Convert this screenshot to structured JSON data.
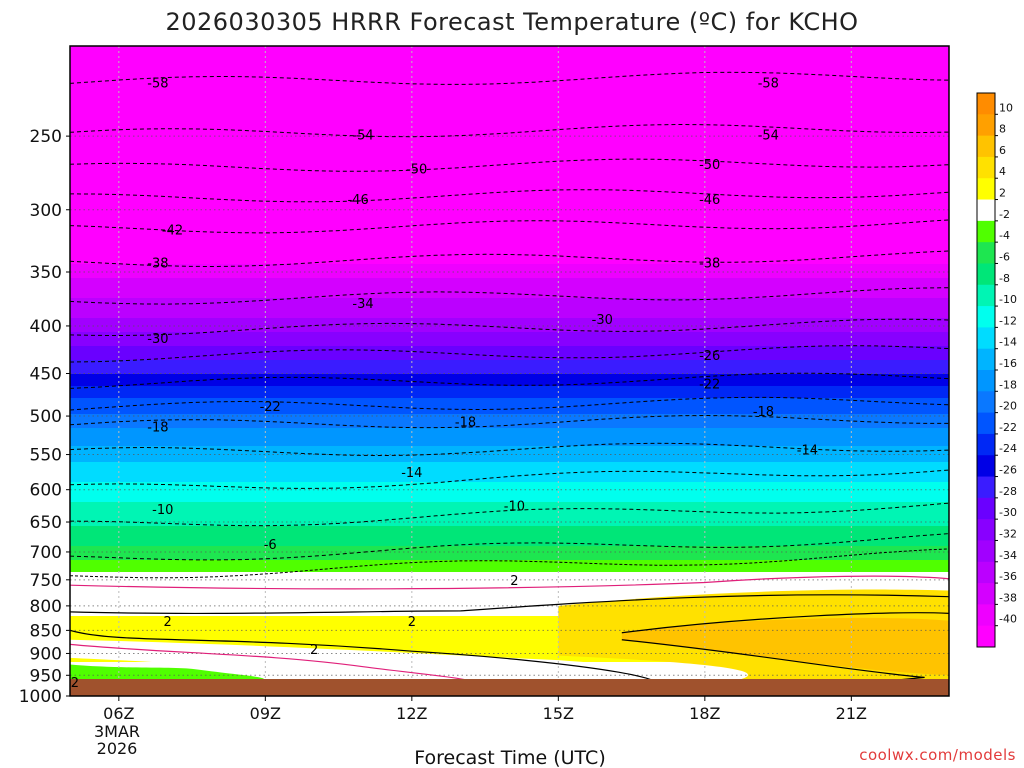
{
  "chart_data": {
    "type": "heatmap",
    "title": "2026030305 HRRR Forecast Temperature (ºC) for KCHO",
    "xlabel": "Forecast Time (UTC)",
    "ylabel": "",
    "credit": "coolwx.com/models",
    "x_ticks": [
      "06Z",
      "09Z",
      "12Z",
      "15Z",
      "18Z",
      "21Z"
    ],
    "x_hours": [
      6,
      9,
      12,
      15,
      18,
      21
    ],
    "x_sub": [
      "3MAR",
      "2026"
    ],
    "xlim_hours": [
      5,
      23
    ],
    "y_ticks": [
      250,
      300,
      350,
      400,
      450,
      500,
      550,
      600,
      650,
      700,
      750,
      800,
      850,
      900,
      950,
      1000
    ],
    "y_tick_labels": [
      "250",
      "300",
      "350",
      "400",
      "450",
      "500",
      "550",
      "600",
      "650",
      "700",
      "750",
      "800",
      "850",
      "900",
      "950",
      "1000"
    ],
    "ylim_hPa": [
      200,
      1000
    ],
    "y_scale": "log",
    "contour_interval_C": 4,
    "colorbar": {
      "levels": [
        -40,
        -38,
        -36,
        -34,
        -32,
        -30,
        -28,
        -26,
        -24,
        -22,
        -20,
        -18,
        -16,
        -14,
        -12,
        -10,
        -8,
        -6,
        -4,
        -2,
        2,
        4,
        6,
        8,
        10
      ],
      "colors": [
        "#ff00ff",
        "#ee00ff",
        "#d400ff",
        "#bb00ff",
        "#a100ff",
        "#8800ff",
        "#6a00ff",
        "#3a1cff",
        "#0000e6",
        "#0028f5",
        "#0055ff",
        "#0a78ff",
        "#0096ff",
        "#00b4ff",
        "#00dcff",
        "#00ffee",
        "#00f5b4",
        "#00e678",
        "#1ee650",
        "#50ff00",
        "#ffffff",
        "#ffff00",
        "#ffe100",
        "#ffc300",
        "#ffa000",
        "#ff8c00"
      ]
    },
    "contour_labels": [
      {
        "t": "-58",
        "hour": 6.8,
        "p": 219
      },
      {
        "t": "-58",
        "hour": 19.3,
        "p": 219
      },
      {
        "t": "-54",
        "hour": 11.0,
        "p": 249
      },
      {
        "t": "-54",
        "hour": 19.3,
        "p": 249
      },
      {
        "t": "-50",
        "hour": 12.1,
        "p": 271
      },
      {
        "t": "-50",
        "hour": 18.1,
        "p": 268
      },
      {
        "t": "-46",
        "hour": 10.9,
        "p": 292
      },
      {
        "t": "-46",
        "hour": 18.1,
        "p": 292
      },
      {
        "t": "-42",
        "hour": 7.1,
        "p": 315
      },
      {
        "t": "-38",
        "hour": 6.8,
        "p": 342
      },
      {
        "t": "-38",
        "hour": 18.1,
        "p": 342
      },
      {
        "t": "-34",
        "hour": 11.0,
        "p": 378
      },
      {
        "t": "-30",
        "hour": 15.9,
        "p": 393
      },
      {
        "t": "-30",
        "hour": 6.8,
        "p": 412
      },
      {
        "t": "-26",
        "hour": 18.1,
        "p": 430
      },
      {
        "t": "-22",
        "hour": 18.1,
        "p": 461
      },
      {
        "t": "-22",
        "hour": 9.1,
        "p": 488
      },
      {
        "t": "-18",
        "hour": 19.2,
        "p": 494
      },
      {
        "t": "-18",
        "hour": 13.1,
        "p": 507
      },
      {
        "t": "-18",
        "hour": 6.8,
        "p": 513
      },
      {
        "t": "-14",
        "hour": 20.1,
        "p": 543
      },
      {
        "t": "-14",
        "hour": 12.0,
        "p": 574
      },
      {
        "t": "-10",
        "hour": 14.1,
        "p": 624
      },
      {
        "t": "-10",
        "hour": 6.9,
        "p": 629
      },
      {
        "t": "-6",
        "hour": 9.1,
        "p": 686
      },
      {
        "t": "2",
        "hour": 14.1,
        "p": 750
      },
      {
        "t": "2",
        "hour": 7.0,
        "p": 831
      },
      {
        "t": "2",
        "hour": 12.0,
        "p": 831
      },
      {
        "t": "2",
        "hour": 10.0,
        "p": 890
      },
      {
        "t": "2",
        "hour": 5.1,
        "p": 966
      }
    ]
  }
}
